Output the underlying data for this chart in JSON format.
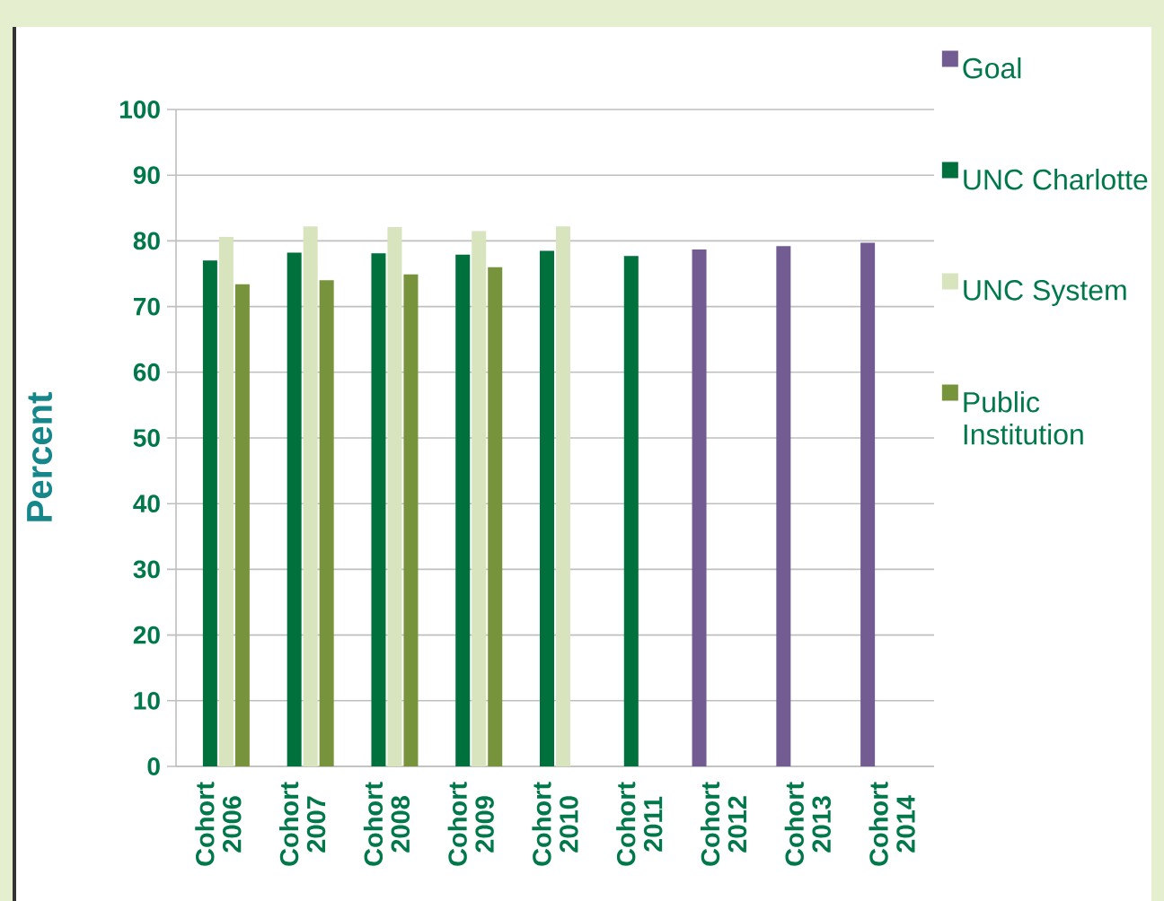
{
  "chart_data": {
    "type": "bar",
    "ylabel": "Percent",
    "categories": [
      "Cohort 2006",
      "Cohort 2007",
      "Cohort 2008",
      "Cohort 2009",
      "Cohort 2010",
      "Cohort 2011",
      "Cohort 2012",
      "Cohort 2013",
      "Cohort 2014"
    ],
    "series": [
      {
        "name": "Goal",
        "color": "#725c92",
        "values": [
          null,
          null,
          null,
          null,
          null,
          null,
          78.7,
          79.2,
          79.7
        ]
      },
      {
        "name": "UNC Charlotte",
        "color": "#00703c",
        "values": [
          77.0,
          78.2,
          78.1,
          77.9,
          78.5,
          77.7,
          null,
          null,
          null
        ]
      },
      {
        "name": "UNC System",
        "color": "#d7e4bd",
        "values": [
          80.6,
          82.2,
          82.1,
          81.5,
          82.2,
          null,
          null,
          null,
          null
        ]
      },
      {
        "name": "Public Institution",
        "color": "#77933c",
        "values": [
          73.4,
          74.0,
          74.9,
          76.0,
          null,
          null,
          null,
          null,
          null
        ]
      }
    ],
    "ylim": [
      0,
      100
    ],
    "yticks": [
      0,
      10,
      20,
      30,
      40,
      50,
      60,
      70,
      80,
      90,
      100
    ],
    "grid": "y",
    "legend": "right"
  }
}
